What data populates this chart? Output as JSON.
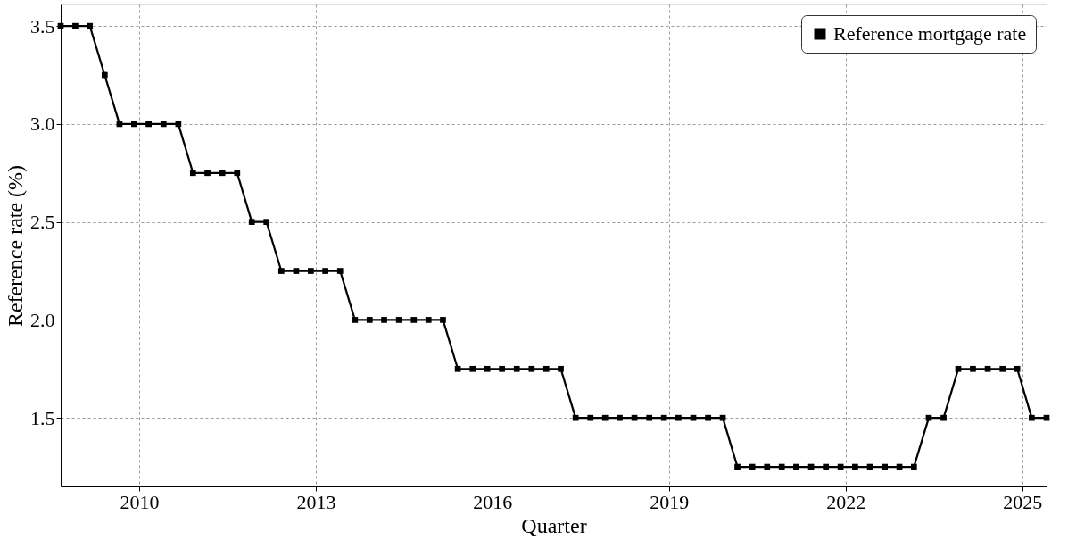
{
  "chart_data": {
    "type": "line",
    "xlabel": "Quarter",
    "ylabel": "Reference rate (%)",
    "x": [
      "2008-09",
      "2008-12",
      "2009-03",
      "2009-06",
      "2009-09",
      "2009-12",
      "2010-03",
      "2010-06",
      "2010-09",
      "2010-12",
      "2011-03",
      "2011-06",
      "2011-09",
      "2011-12",
      "2012-03",
      "2012-06",
      "2012-09",
      "2012-12",
      "2013-03",
      "2013-06",
      "2013-09",
      "2013-12",
      "2014-03",
      "2014-06",
      "2014-09",
      "2014-12",
      "2015-03",
      "2015-06",
      "2015-09",
      "2015-12",
      "2016-03",
      "2016-06",
      "2016-09",
      "2016-12",
      "2017-03",
      "2017-06",
      "2017-09",
      "2017-12",
      "2018-03",
      "2018-06",
      "2018-09",
      "2018-12",
      "2019-03",
      "2019-06",
      "2019-09",
      "2019-12",
      "2020-03",
      "2020-06",
      "2020-09",
      "2020-12",
      "2021-03",
      "2021-06",
      "2021-09",
      "2021-12",
      "2022-03",
      "2022-06",
      "2022-09",
      "2022-12",
      "2023-03",
      "2023-06",
      "2023-09",
      "2023-12",
      "2024-03",
      "2024-06",
      "2024-09",
      "2024-12",
      "2025-03",
      "2025-06"
    ],
    "series": [
      {
        "name": "Reference mortgage rate",
        "color": "#000000",
        "values": [
          3.5,
          3.5,
          3.5,
          3.25,
          3.0,
          3.0,
          3.0,
          3.0,
          3.0,
          2.75,
          2.75,
          2.75,
          2.75,
          2.5,
          2.5,
          2.25,
          2.25,
          2.25,
          2.25,
          2.25,
          2.0,
          2.0,
          2.0,
          2.0,
          2.0,
          2.0,
          2.0,
          1.75,
          1.75,
          1.75,
          1.75,
          1.75,
          1.75,
          1.75,
          1.75,
          1.5,
          1.5,
          1.5,
          1.5,
          1.5,
          1.5,
          1.5,
          1.5,
          1.5,
          1.5,
          1.5,
          1.25,
          1.25,
          1.25,
          1.25,
          1.25,
          1.25,
          1.25,
          1.25,
          1.25,
          1.25,
          1.25,
          1.25,
          1.25,
          1.5,
          1.5,
          1.75,
          1.75,
          1.75,
          1.75,
          1.75,
          1.5,
          1.5
        ]
      }
    ],
    "xlim": [
      "2008-09",
      "2025-06"
    ],
    "xticks": [
      "2010",
      "2013",
      "2016",
      "2019",
      "2022",
      "2025"
    ],
    "ylim": [
      1.15,
      3.61
    ],
    "yticks": [
      1.5,
      {
        "value": 2,
        "label": "2.0"
      },
      2.5,
      {
        "value": 3,
        "label": "3.0"
      },
      3.5
    ],
    "grid": true,
    "legend": "top right",
    "marker": "square",
    "line_style": "solid"
  }
}
